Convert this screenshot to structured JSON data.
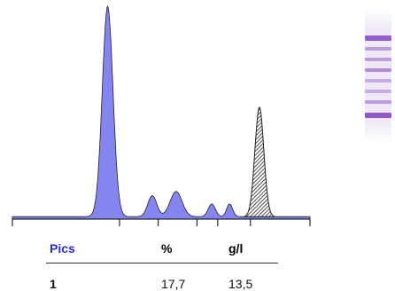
{
  "chart_data": {
    "type": "area",
    "title": "",
    "xlabel": "",
    "ylabel": "",
    "fill_color": "#8585f0",
    "hatched_fill_color": "#222222",
    "baseline_color": "#000000",
    "peaks": [
      {
        "center": 0.32,
        "height": 1.0,
        "width": 0.018
      },
      {
        "center": 0.47,
        "height": 0.1,
        "width": 0.015
      },
      {
        "center": 0.55,
        "height": 0.12,
        "width": 0.02
      },
      {
        "center": 0.67,
        "height": 0.06,
        "width": 0.012
      },
      {
        "center": 0.73,
        "height": 0.06,
        "width": 0.01
      },
      {
        "center": 0.83,
        "height": 0.52,
        "width": 0.015,
        "hatched": true
      }
    ],
    "x_ticks": 6
  },
  "table": {
    "headers": [
      "Pics",
      "%",
      "g/l"
    ],
    "header_color": "#2a2ae0",
    "rows": [
      [
        "1",
        "17,7",
        "13,5"
      ]
    ]
  },
  "gel": {
    "band_color": "#8a4fc4",
    "bands": [
      {
        "pos": 0.22,
        "strength": 0.9
      },
      {
        "pos": 0.3,
        "strength": 0.5
      },
      {
        "pos": 0.38,
        "strength": 0.5
      },
      {
        "pos": 0.46,
        "strength": 0.6
      },
      {
        "pos": 0.54,
        "strength": 0.4
      },
      {
        "pos": 0.62,
        "strength": 0.4
      },
      {
        "pos": 0.7,
        "strength": 0.5
      },
      {
        "pos": 0.8,
        "strength": 0.95
      }
    ]
  }
}
